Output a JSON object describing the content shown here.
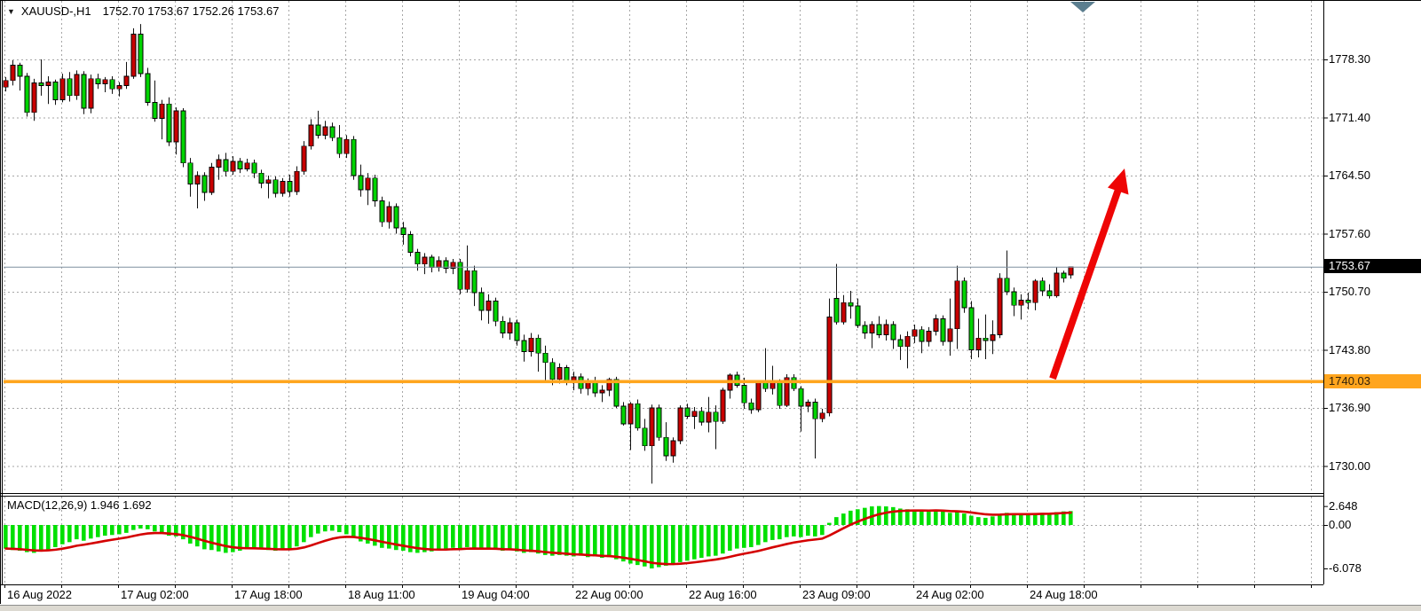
{
  "app": {
    "title_symbol": "XAUUSD-,H1",
    "ohlc_line": "1752.70 1753.67 1752.26 1753.67",
    "dropdown_icon": "▼"
  },
  "colors": {
    "bull": "#C80000",
    "bear": "#00D400",
    "wick": "#111111",
    "grid": "#A6A6A6",
    "border": "#000000",
    "macd_bar": "#00E000",
    "macd_signal": "#D40000",
    "support_line": "#FFA51E",
    "last_price_line": "#7F8F9F",
    "arrow": "#EE0505",
    "shift_marker": "#5B7E8F"
  },
  "price_axis": {
    "ticks": [
      1778.3,
      1771.4,
      1764.5,
      1757.6,
      1750.7,
      1743.8,
      1736.9,
      1730.0
    ],
    "last_price_badge": {
      "text": "1753.67",
      "bg": "#000000",
      "fg": "#FFFFFF"
    },
    "support_badge": {
      "text": "1740.03",
      "bg": "#FFA51E",
      "fg": "#33220A"
    }
  },
  "time_axis": {
    "labels": [
      "16 Aug 2022",
      "17 Aug 02:00",
      "17 Aug 18:00",
      "18 Aug 11:00",
      "19 Aug 04:00",
      "22 Aug 00:00",
      "22 Aug 16:00",
      "23 Aug 09:00",
      "24 Aug 02:00",
      "24 Aug 18:00"
    ]
  },
  "macd_panel": {
    "label": "MACD(12,26,9) 1.946 1.692",
    "ticks": [
      {
        "text": "2.648",
        "value": 2.648
      },
      {
        "text": "0.00",
        "value": 0
      },
      {
        "text": "-6.078",
        "value": -6.078
      }
    ]
  },
  "chart_data": [
    {
      "type": "candlestick",
      "title": "XAUUSD-,H1",
      "timeframe": "H1",
      "ohlc_current": {
        "open": 1752.7,
        "high": 1753.67,
        "low": 1752.26,
        "close": 1753.67
      },
      "ylim": [
        1726.8,
        1785.3
      ],
      "y_ticks": [
        1778.3,
        1771.4,
        1764.5,
        1757.6,
        1750.7,
        1743.8,
        1736.9,
        1730.0
      ],
      "x_tick_labels": [
        "16 Aug 2022",
        "17 Aug 02:00",
        "17 Aug 18:00",
        "18 Aug 11:00",
        "19 Aug 04:00",
        "22 Aug 00:00",
        "22 Aug 16:00",
        "23 Aug 09:00",
        "24 Aug 02:00",
        "24 Aug 18:00"
      ],
      "note": "inverted color scheme: red body = bullish, green body = bearish",
      "annotations": {
        "support_line": {
          "price": 1740.03
        },
        "last_price_line": {
          "price": 1753.67
        },
        "trend_arrow": {
          "from_price": 1740.4,
          "to_price": 1764.2,
          "direction": "up"
        }
      },
      "candles": [
        [
          1775.0,
          1776.2,
          1774.5,
          1775.8
        ],
        [
          1775.8,
          1778.2,
          1775.2,
          1777.6
        ],
        [
          1777.6,
          1777.9,
          1774.6,
          1776.3
        ],
        [
          1776.3,
          1776.7,
          1771.5,
          1772.0
        ],
        [
          1772.0,
          1776.0,
          1771.0,
          1775.5
        ],
        [
          1775.5,
          1778.3,
          1774.0,
          1775.2
        ],
        [
          1775.2,
          1776.3,
          1773.0,
          1775.6
        ],
        [
          1775.6,
          1775.9,
          1772.9,
          1773.5
        ],
        [
          1773.5,
          1776.6,
          1773.2,
          1776.0
        ],
        [
          1776.0,
          1776.8,
          1773.3,
          1774.0
        ],
        [
          1774.0,
          1777.0,
          1773.5,
          1776.5
        ],
        [
          1776.5,
          1776.9,
          1771.8,
          1772.5
        ],
        [
          1772.5,
          1776.5,
          1771.9,
          1776.0
        ],
        [
          1776.0,
          1776.6,
          1774.8,
          1775.4
        ],
        [
          1775.4,
          1776.2,
          1774.4,
          1775.9
        ],
        [
          1775.9,
          1776.3,
          1774.2,
          1774.8
        ],
        [
          1774.8,
          1775.6,
          1773.9,
          1775.2
        ],
        [
          1775.2,
          1778.0,
          1774.8,
          1776.3
        ],
        [
          1776.3,
          1782.0,
          1776.0,
          1781.3
        ],
        [
          1781.3,
          1782.5,
          1776.2,
          1776.6
        ],
        [
          1776.6,
          1777.3,
          1772.8,
          1773.2
        ],
        [
          1773.2,
          1775.8,
          1770.9,
          1771.3
        ],
        [
          1771.3,
          1773.5,
          1768.8,
          1773.0
        ],
        [
          1773.0,
          1773.8,
          1768.0,
          1768.5
        ],
        [
          1768.5,
          1772.6,
          1767.0,
          1772.2
        ],
        [
          1772.2,
          1772.5,
          1765.5,
          1766.0
        ],
        [
          1766.0,
          1766.6,
          1762.0,
          1763.5
        ],
        [
          1763.5,
          1765.0,
          1760.6,
          1764.5
        ],
        [
          1764.5,
          1764.9,
          1761.5,
          1762.5
        ],
        [
          1762.5,
          1766.0,
          1762.2,
          1765.5
        ],
        [
          1765.5,
          1767.0,
          1764.0,
          1766.4
        ],
        [
          1766.4,
          1767.2,
          1764.4,
          1765.0
        ],
        [
          1765.0,
          1766.8,
          1764.6,
          1766.2
        ],
        [
          1766.2,
          1766.6,
          1764.8,
          1765.3
        ],
        [
          1765.3,
          1766.5,
          1765.0,
          1766.0
        ],
        [
          1766.0,
          1766.4,
          1764.2,
          1764.8
        ],
        [
          1764.8,
          1765.2,
          1763.0,
          1763.6
        ],
        [
          1763.6,
          1764.5,
          1761.8,
          1764.0
        ],
        [
          1764.0,
          1764.4,
          1761.9,
          1762.4
        ],
        [
          1762.4,
          1764.2,
          1762.0,
          1763.8
        ],
        [
          1763.8,
          1764.6,
          1762.0,
          1762.6
        ],
        [
          1762.6,
          1765.6,
          1762.2,
          1765.0
        ],
        [
          1765.0,
          1768.6,
          1764.6,
          1768.0
        ],
        [
          1768.0,
          1771.2,
          1767.6,
          1770.5
        ],
        [
          1770.5,
          1772.2,
          1768.9,
          1769.3
        ],
        [
          1769.3,
          1771.0,
          1768.8,
          1770.3
        ],
        [
          1770.3,
          1770.8,
          1768.6,
          1769.0
        ],
        [
          1769.0,
          1770.5,
          1766.6,
          1767.1
        ],
        [
          1767.1,
          1769.3,
          1766.6,
          1768.8
        ],
        [
          1768.8,
          1769.2,
          1764.0,
          1764.5
        ],
        [
          1764.5,
          1765.8,
          1762.0,
          1762.8
        ],
        [
          1762.8,
          1764.8,
          1761.0,
          1764.2
        ],
        [
          1764.2,
          1764.6,
          1760.8,
          1761.5
        ],
        [
          1761.5,
          1762.0,
          1758.4,
          1759.0
        ],
        [
          1759.0,
          1761.4,
          1758.2,
          1760.8
        ],
        [
          1760.8,
          1761.2,
          1757.6,
          1758.3
        ],
        [
          1758.3,
          1759.0,
          1756.3,
          1757.5
        ],
        [
          1757.5,
          1757.9,
          1754.9,
          1755.4
        ],
        [
          1755.4,
          1755.8,
          1753.2,
          1754.0
        ],
        [
          1754.0,
          1755.3,
          1752.8,
          1754.8
        ],
        [
          1754.8,
          1755.1,
          1753.0,
          1753.6
        ],
        [
          1753.6,
          1754.9,
          1753.1,
          1754.4
        ],
        [
          1754.4,
          1754.8,
          1752.9,
          1753.5
        ],
        [
          1753.5,
          1754.6,
          1752.8,
          1754.2
        ],
        [
          1754.2,
          1754.6,
          1750.4,
          1751.0
        ],
        [
          1751.0,
          1756.2,
          1750.6,
          1753.2
        ],
        [
          1753.2,
          1753.8,
          1749.0,
          1750.6
        ],
        [
          1750.6,
          1751.2,
          1747.3,
          1748.5
        ],
        [
          1748.5,
          1750.4,
          1746.9,
          1749.6
        ],
        [
          1749.6,
          1750.0,
          1746.6,
          1747.2
        ],
        [
          1747.2,
          1747.8,
          1745.2,
          1745.8
        ],
        [
          1745.8,
          1747.6,
          1745.0,
          1747.0
        ],
        [
          1747.0,
          1747.4,
          1744.3,
          1744.9
        ],
        [
          1744.9,
          1745.6,
          1742.4,
          1743.6
        ],
        [
          1743.6,
          1745.8,
          1743.0,
          1745.2
        ],
        [
          1745.2,
          1745.6,
          1741.2,
          1743.4
        ],
        [
          1743.4,
          1744.3,
          1740.2,
          1742.3
        ],
        [
          1742.3,
          1742.8,
          1739.6,
          1740.3
        ],
        [
          1740.3,
          1742.2,
          1739.8,
          1741.7
        ],
        [
          1741.7,
          1742.0,
          1739.6,
          1740.1
        ],
        [
          1740.1,
          1741.2,
          1739.0,
          1740.6
        ],
        [
          1740.6,
          1741.0,
          1738.6,
          1739.2
        ],
        [
          1739.2,
          1740.4,
          1738.4,
          1739.9
        ],
        [
          1739.9,
          1740.6,
          1738.2,
          1738.7
        ],
        [
          1738.7,
          1739.6,
          1737.6,
          1739.0
        ],
        [
          1739.0,
          1740.5,
          1738.3,
          1740.3
        ],
        [
          1740.3,
          1740.6,
          1736.9,
          1737.1
        ],
        [
          1737.1,
          1737.6,
          1734.8,
          1735.0
        ],
        [
          1735.0,
          1737.6,
          1731.9,
          1737.4
        ],
        [
          1737.4,
          1737.9,
          1734.2,
          1734.5
        ],
        [
          1734.5,
          1735.6,
          1731.8,
          1732.4
        ],
        [
          1732.4,
          1737.3,
          1727.9,
          1736.9
        ],
        [
          1736.9,
          1737.3,
          1733.0,
          1733.4
        ],
        [
          1733.4,
          1735.2,
          1730.6,
          1731.2
        ],
        [
          1731.2,
          1733.4,
          1730.4,
          1733.0
        ],
        [
          1733.0,
          1737.2,
          1732.6,
          1736.9
        ],
        [
          1736.9,
          1737.4,
          1735.6,
          1735.9
        ],
        [
          1735.9,
          1737.0,
          1734.4,
          1736.5
        ],
        [
          1736.5,
          1737.0,
          1734.8,
          1735.2
        ],
        [
          1735.2,
          1738.2,
          1734.0,
          1736.4
        ],
        [
          1736.4,
          1737.2,
          1732.0,
          1735.3
        ],
        [
          1735.3,
          1739.3,
          1735.0,
          1739.0
        ],
        [
          1739.0,
          1741.0,
          1738.0,
          1740.8
        ],
        [
          1740.8,
          1741.2,
          1739.3,
          1739.6
        ],
        [
          1739.6,
          1740.5,
          1736.8,
          1737.5
        ],
        [
          1737.5,
          1738.0,
          1736.2,
          1736.7
        ],
        [
          1736.7,
          1740.2,
          1736.4,
          1740.0
        ],
        [
          1740.0,
          1744.0,
          1738.8,
          1739.2
        ],
        [
          1739.2,
          1741.9,
          1738.5,
          1740.0
        ],
        [
          1740.0,
          1740.3,
          1736.8,
          1737.2
        ],
        [
          1737.2,
          1740.9,
          1737.0,
          1740.5
        ],
        [
          1740.5,
          1740.9,
          1738.9,
          1739.2
        ],
        [
          1739.2,
          1739.5,
          1734.1,
          1737.1
        ],
        [
          1737.1,
          1737.9,
          1736.4,
          1737.6
        ],
        [
          1737.6,
          1738.0,
          1730.9,
          1735.6
        ],
        [
          1735.6,
          1736.8,
          1735.2,
          1736.3
        ],
        [
          1736.3,
          1749.9,
          1735.9,
          1747.7
        ],
        [
          1749.9,
          1754.0,
          1746.8,
          1747.1
        ],
        [
          1747.1,
          1750.3,
          1746.8,
          1749.4
        ],
        [
          1749.4,
          1750.8,
          1747.5,
          1749.0
        ],
        [
          1749.0,
          1749.9,
          1746.4,
          1746.7
        ],
        [
          1746.7,
          1747.2,
          1745.1,
          1745.8
        ],
        [
          1745.8,
          1747.2,
          1744.0,
          1746.8
        ],
        [
          1746.8,
          1747.8,
          1745.2,
          1745.6
        ],
        [
          1745.6,
          1747.4,
          1744.9,
          1746.8
        ],
        [
          1746.8,
          1747.2,
          1743.9,
          1745.0
        ],
        [
          1745.0,
          1745.6,
          1742.6,
          1744.2
        ],
        [
          1744.2,
          1746.0,
          1741.6,
          1745.4
        ],
        [
          1745.4,
          1746.8,
          1744.6,
          1746.2
        ],
        [
          1746.2,
          1746.6,
          1743.4,
          1744.8
        ],
        [
          1744.8,
          1746.5,
          1744.2,
          1746.0
        ],
        [
          1746.0,
          1748.0,
          1745.5,
          1747.5
        ],
        [
          1747.5,
          1747.9,
          1744.3,
          1744.8
        ],
        [
          1744.8,
          1749.9,
          1743.1,
          1746.3
        ],
        [
          1746.3,
          1753.8,
          1743.9,
          1752.0
        ],
        [
          1752.0,
          1752.4,
          1748.2,
          1748.8
        ],
        [
          1748.8,
          1749.6,
          1742.7,
          1743.8
        ],
        [
          1743.8,
          1747.5,
          1742.9,
          1745.2
        ],
        [
          1745.2,
          1748.0,
          1742.7,
          1744.9
        ],
        [
          1744.9,
          1747.3,
          1743.3,
          1745.6
        ],
        [
          1745.6,
          1752.9,
          1745.2,
          1752.3
        ],
        [
          1752.3,
          1755.6,
          1750.3,
          1750.7
        ],
        [
          1750.7,
          1751.2,
          1747.8,
          1749.1
        ],
        [
          1749.1,
          1750.4,
          1747.4,
          1749.7
        ],
        [
          1749.7,
          1750.6,
          1748.6,
          1749.4
        ],
        [
          1749.4,
          1752.2,
          1748.5,
          1752.0
        ],
        [
          1752.0,
          1752.4,
          1750.2,
          1750.8
        ],
        [
          1750.8,
          1751.6,
          1749.9,
          1750.2
        ],
        [
          1750.2,
          1753.6,
          1750.0,
          1752.9
        ],
        [
          1752.9,
          1753.2,
          1751.8,
          1752.3
        ],
        [
          1752.7,
          1753.67,
          1752.26,
          1753.67
        ]
      ]
    },
    {
      "type": "bar",
      "name": "MACD",
      "params": "12,26,9",
      "macd_last": 1.946,
      "signal_last": 1.692,
      "y_ticks": [
        2.648,
        0.0,
        -6.078
      ],
      "values": [
        -3.3,
        -3.5,
        -3.6,
        -3.8,
        -3.9,
        -3.7,
        -3.4,
        -3.1,
        -2.7,
        -2.4,
        -2.0,
        -2.2,
        -1.9,
        -1.7,
        -1.5,
        -1.4,
        -1.3,
        -1.1,
        -0.7,
        -0.5,
        -0.6,
        -0.9,
        -1.1,
        -1.5,
        -1.6,
        -2.0,
        -2.6,
        -3.0,
        -3.4,
        -3.5,
        -3.7,
        -3.9,
        -3.8,
        -3.6,
        -3.4,
        -3.3,
        -3.4,
        -3.5,
        -3.6,
        -3.5,
        -3.4,
        -3.0,
        -2.4,
        -1.7,
        -1.2,
        -0.9,
        -0.8,
        -1.0,
        -1.3,
        -1.8,
        -2.3,
        -2.6,
        -2.9,
        -3.2,
        -3.3,
        -3.5,
        -3.6,
        -3.8,
        -3.9,
        -3.8,
        -3.7,
        -3.5,
        -3.4,
        -3.2,
        -3.3,
        -3.1,
        -3.2,
        -3.4,
        -3.3,
        -3.4,
        -3.6,
        -3.5,
        -3.7,
        -3.9,
        -3.8,
        -4.0,
        -4.2,
        -4.3,
        -4.2,
        -4.3,
        -4.4,
        -4.3,
        -4.5,
        -4.4,
        -4.6,
        -4.5,
        -4.8,
        -5.1,
        -5.4,
        -5.6,
        -5.8,
        -6.078,
        -5.9,
        -5.7,
        -5.5,
        -5.2,
        -5.0,
        -4.8,
        -4.6,
        -4.4,
        -4.3,
        -4.0,
        -3.6,
        -3.3,
        -3.2,
        -3.1,
        -2.8,
        -2.4,
        -2.1,
        -2.0,
        -1.7,
        -1.6,
        -1.7,
        -1.5,
        -1.6,
        -1.4,
        0.3,
        1.1,
        1.6,
        2.0,
        2.2,
        2.4,
        2.6,
        2.648,
        2.6,
        2.5,
        2.3,
        2.2,
        2.1,
        2.0,
        2.0,
        2.1,
        1.9,
        1.7,
        1.8,
        1.6,
        1.3,
        1.1,
        1.0,
        1.2,
        1.5,
        1.7,
        1.6,
        1.5,
        1.5,
        1.6,
        1.7,
        1.6,
        1.8,
        1.9,
        1.946
      ]
    }
  ]
}
